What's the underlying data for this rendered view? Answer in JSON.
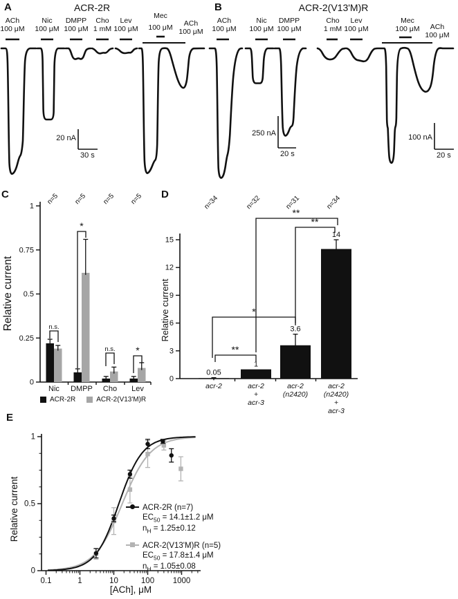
{
  "figure": {
    "background": "#ffffff",
    "ink": "#111111",
    "gray": "#a6a6a6",
    "gray_line": "#b3b3b3"
  },
  "panels": {
    "A": {
      "letter": "A",
      "title": "ACR-2R",
      "applications": [
        {
          "name": "ACh",
          "dose": "100 μM"
        },
        {
          "name": "Nic",
          "dose": "100 μM"
        },
        {
          "name": "DMPP",
          "dose": "100 μM"
        },
        {
          "name": "Cho",
          "dose": "1 mM"
        },
        {
          "name": "Lev",
          "dose": "100 μM"
        },
        {
          "name": "Mec",
          "dose": "100 μM"
        },
        {
          "name": "ACh",
          "dose": "100 μM"
        }
      ],
      "scalebar": {
        "amplitude": "20 nA",
        "time": "30 s"
      }
    },
    "B": {
      "letter": "B",
      "title": "ACR-2(V13'M)R",
      "applications": [
        {
          "name": "ACh",
          "dose": "100 μM"
        },
        {
          "name": "Nic",
          "dose": "100 μM"
        },
        {
          "name": "DMPP",
          "dose": "100 μM"
        },
        {
          "name": "Cho",
          "dose": "1 mM"
        },
        {
          "name": "Lev",
          "dose": "100 μM"
        },
        {
          "name": "Mec",
          "dose": "100 μM"
        },
        {
          "name": "ACh",
          "dose": "100 μM"
        }
      ],
      "scalebars": [
        {
          "amplitude": "250 nA",
          "time": "20 s"
        },
        {
          "amplitude": "100 nA",
          "time": "20 s"
        }
      ]
    },
    "C": {
      "letter": "C"
    },
    "D": {
      "letter": "D"
    },
    "E": {
      "letter": "E"
    }
  },
  "chart_data": [
    {
      "panel": "C",
      "type": "bar",
      "ylabel": "Relative current",
      "ylim": [
        0,
        1
      ],
      "yticks": [
        0,
        0.25,
        0.5,
        0.75,
        1
      ],
      "categories": [
        "Nic",
        "DMPP",
        "Cho",
        "Lev"
      ],
      "series": [
        {
          "name": "ACR-2R",
          "color": "#111111",
          "values": [
            0.22,
            0.055,
            0.02,
            0.02
          ],
          "errors": [
            0.023,
            0.02,
            0.012,
            0.012
          ]
        },
        {
          "name": "ACR-2(V13'M)R",
          "color": "#a6a6a6",
          "values": [
            0.19,
            0.62,
            0.06,
            0.08
          ],
          "errors": [
            0.018,
            0.19,
            0.025,
            0.03
          ]
        }
      ],
      "n_labels": [
        "n=5",
        "n=5",
        "n=5",
        "n=5"
      ],
      "significance": [
        "n.s.",
        "*",
        "n.s.",
        "*"
      ]
    },
    {
      "panel": "D",
      "type": "bar",
      "ylabel": "Relative current",
      "ylim": [
        0,
        15
      ],
      "yticks": [
        0,
        3,
        6,
        9,
        12,
        15
      ],
      "categories": [
        [
          "acr-2"
        ],
        [
          "acr-2",
          "+",
          "acr-3"
        ],
        [
          "acr-2",
          "(n2420)"
        ],
        [
          "acr-2",
          "(n2420)",
          "+",
          "acr-3"
        ]
      ],
      "values": [
        0.05,
        1,
        3.6,
        14
      ],
      "errors": [
        0.05,
        0,
        1.2,
        1
      ],
      "value_labels": [
        "0.05",
        "1",
        "3.6",
        "14"
      ],
      "n_labels": [
        "n=34",
        "n=32",
        "n=31",
        "n=34"
      ],
      "bar_color": "#111111",
      "significance": [
        {
          "between": [
            "acr-2",
            "acr-2 + acr-3"
          ],
          "label": "**"
        },
        {
          "between": [
            "acr-2",
            "acr-2 (n2420)"
          ],
          "label": "*"
        },
        {
          "between": [
            "acr-2 + acr-3",
            "acr-2 (n2420) + acr-3"
          ],
          "label": "**"
        },
        {
          "between": [
            "acr-2 (n2420)",
            "acr-2 (n2420) + acr-3"
          ],
          "label": "**"
        }
      ]
    },
    {
      "panel": "E",
      "type": "line",
      "xlabel": "[ACh], μM",
      "ylabel": "Relative current",
      "xscale": "log",
      "xlim": [
        0.1,
        3000
      ],
      "ylim": [
        0,
        1
      ],
      "xtick_labels": [
        "0.1",
        "1",
        "10",
        "100",
        "1000"
      ],
      "xtick_values": [
        0.1,
        1,
        10,
        100,
        1000
      ],
      "ytick_labels": [
        "0",
        "0.5",
        "1"
      ],
      "ytick_values": [
        0,
        0.5,
        1
      ],
      "series": [
        {
          "name": "ACR-2R (n=7)",
          "color": "#111111",
          "marker": "circle",
          "ec50_um": 14.1,
          "hill": 1.25,
          "x": [
            3,
            10,
            30,
            100,
            280,
            500
          ],
          "y": [
            0.13,
            0.39,
            0.72,
            0.945,
            0.965,
            0.86
          ],
          "err": [
            0.035,
            0.025,
            0.03,
            0.035,
            0.015,
            0.05
          ],
          "legend_title": "ACR-2R (n=7)",
          "ec50": {
            "pre": "EC",
            "sub": "50",
            "post": " = 14.1±1.2 μM"
          },
          "nh": {
            "pre": "n",
            "sub": "H",
            "post": " = 1.25±0.12"
          }
        },
        {
          "name": "ACR-2(V13'M)R (n=5)",
          "color": "#b3b3b3",
          "marker": "square",
          "ec50_um": 17.8,
          "hill": 1.05,
          "x": [
            3,
            10,
            30,
            100,
            300,
            950
          ],
          "y": [
            0.125,
            0.37,
            0.605,
            0.87,
            0.935,
            0.76
          ],
          "err": [
            0.04,
            0.1,
            0.1,
            0.1,
            0.035,
            0.09
          ],
          "legend_title": "ACR-2(V13'M)R (n=5)",
          "ec50": {
            "pre": "EC",
            "sub": "50",
            "post": " = 17.8±1.4 μM"
          },
          "nh": {
            "pre": "n",
            "sub": "H",
            "post": " = 1.05±0.08"
          }
        }
      ]
    }
  ]
}
